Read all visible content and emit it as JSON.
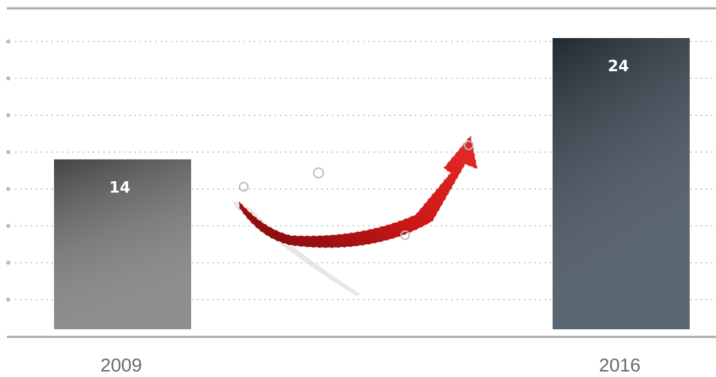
{
  "chart_data": {
    "type": "bar",
    "categories": [
      "2009",
      "2016"
    ],
    "values": [
      14,
      24
    ],
    "colors": [
      "#7a7a7a",
      "#3c4a58"
    ]
  }
}
